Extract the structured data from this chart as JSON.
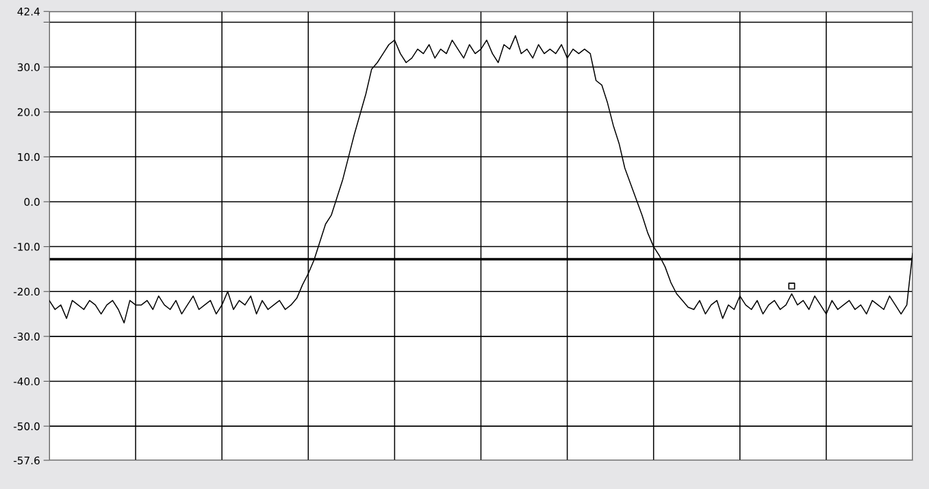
{
  "chart_data": {
    "type": "line",
    "categories": [
      null,
      null,
      null,
      null,
      null,
      null,
      null,
      null,
      null,
      null,
      null,
      null,
      null,
      null,
      null,
      null,
      null,
      null,
      null,
      null,
      null,
      null,
      null,
      null,
      null,
      null,
      null,
      null,
      null,
      null,
      null,
      null,
      null,
      null,
      null,
      null,
      null,
      null,
      null,
      null,
      null,
      null,
      null,
      null,
      null,
      null,
      null,
      null,
      null,
      null,
      null,
      null,
      null,
      null,
      null,
      null,
      null,
      null,
      null,
      null,
      null,
      null,
      null,
      null,
      null,
      null,
      null,
      null,
      null,
      null,
      null,
      null,
      null,
      null,
      null,
      null,
      null,
      null,
      null,
      null,
      null,
      null,
      null,
      null,
      null,
      null,
      null,
      null,
      null,
      null,
      null,
      null,
      null,
      null,
      null,
      null,
      null,
      null,
      null,
      null,
      null,
      null,
      null,
      null,
      null,
      null,
      null,
      null,
      null,
      null,
      null,
      null,
      null,
      null,
      null,
      null,
      null,
      null,
      null,
      null,
      null,
      null,
      null,
      null,
      null,
      null,
      null,
      null,
      null,
      null,
      null,
      null,
      null,
      null,
      null,
      null,
      null,
      null,
      null,
      null,
      null,
      null,
      null,
      null,
      null,
      null,
      null,
      null,
      null,
      null,
      null
    ],
    "series": [
      {
        "color": "#000000",
        "marker": "none",
        "line_style": "solid",
        "values": [
          -22,
          -24,
          -23,
          -26,
          -22,
          -23,
          -24,
          -22,
          -23,
          -25,
          -23,
          -22,
          -24,
          -27,
          -22,
          -23,
          -23,
          -22,
          -24,
          -21,
          -23,
          -24,
          -22,
          -25,
          -23,
          -21,
          -24,
          -23,
          -22,
          -25,
          -23,
          -20,
          -24,
          -22,
          -23,
          -21,
          -25,
          -22,
          -24,
          -23,
          -22,
          -24,
          -23,
          -21.5,
          -18.5,
          -16,
          -13,
          -9,
          -5,
          -3,
          1,
          5,
          10,
          15,
          19.5,
          24,
          29.5,
          31,
          33,
          35,
          36,
          33,
          31,
          32,
          34,
          33,
          35,
          32,
          34,
          33,
          36,
          34,
          32,
          35,
          33,
          34,
          36,
          33,
          31,
          35,
          34,
          37,
          33,
          34,
          32,
          35,
          33,
          34,
          33,
          35,
          32,
          34,
          33,
          34,
          33,
          27,
          26,
          22,
          17,
          13,
          7.5,
          4,
          0.5,
          -3,
          -7,
          -10,
          -12,
          -14.5,
          -18,
          -20.5,
          -22,
          -23.5,
          -24,
          -22,
          -25,
          -23,
          -22,
          -26,
          -23,
          -24,
          -21,
          -23,
          -24,
          -22,
          -25,
          -23,
          -22,
          -24,
          -23,
          -20.5,
          -23,
          -22,
          -24,
          -21,
          -23,
          -25,
          -22,
          -24,
          -23,
          -22,
          -24,
          -23,
          -25,
          -22,
          -23,
          -24,
          -21,
          -23,
          -25,
          -23,
          -11.5
        ]
      },
      {
        "type": "scatter",
        "color": "#000000",
        "marker": "square",
        "values": [
          null,
          null,
          null,
          null,
          null,
          null,
          null,
          null,
          null,
          null,
          null,
          null,
          null,
          null,
          null,
          null,
          null,
          null,
          null,
          null,
          null,
          null,
          null,
          null,
          null,
          null,
          null,
          null,
          null,
          null,
          null,
          null,
          null,
          null,
          null,
          null,
          null,
          null,
          null,
          null,
          null,
          null,
          null,
          null,
          null,
          null,
          null,
          null,
          null,
          null,
          null,
          null,
          null,
          null,
          null,
          null,
          null,
          null,
          null,
          null,
          null,
          null,
          null,
          null,
          null,
          null,
          null,
          null,
          null,
          null,
          null,
          null,
          null,
          null,
          null,
          null,
          null,
          null,
          null,
          null,
          null,
          null,
          null,
          null,
          null,
          null,
          null,
          null,
          null,
          null,
          null,
          null,
          null,
          null,
          null,
          null,
          null,
          null,
          null,
          null,
          null,
          null,
          null,
          null,
          null,
          null,
          null,
          null,
          null,
          null,
          null,
          null,
          null,
          null,
          null,
          null,
          null,
          null,
          null,
          null,
          null,
          null,
          null,
          null,
          null,
          null,
          null,
          null,
          null,
          -18.8,
          null,
          null,
          null,
          null,
          null,
          null,
          null,
          null,
          null,
          null,
          null,
          null,
          null,
          null,
          null,
          null,
          null,
          null,
          null,
          null,
          null
        ]
      }
    ],
    "ylim": [
      -57.6,
      42.4
    ],
    "yticks": [
      -57.6,
      {
        "value": -50,
        "label": "-50.0"
      },
      {
        "value": -40,
        "label": "-40.0"
      },
      {
        "value": -30,
        "label": "-30.0"
      },
      {
        "value": -20,
        "label": "-20.0"
      },
      {
        "value": -10,
        "label": "-10.0"
      },
      {
        "value": 0,
        "label": "0.0"
      },
      {
        "value": 10,
        "label": "10.0"
      },
      {
        "value": 20,
        "label": "20.0"
      },
      {
        "value": 30,
        "label": "30.0"
      },
      {
        "value": 40,
        "label": null
      },
      42.4
    ],
    "ref_lines": [
      {
        "axis": "y",
        "value": -12.8,
        "color": "#000000"
      }
    ],
    "grid": true,
    "tick_labels": "y"
  }
}
